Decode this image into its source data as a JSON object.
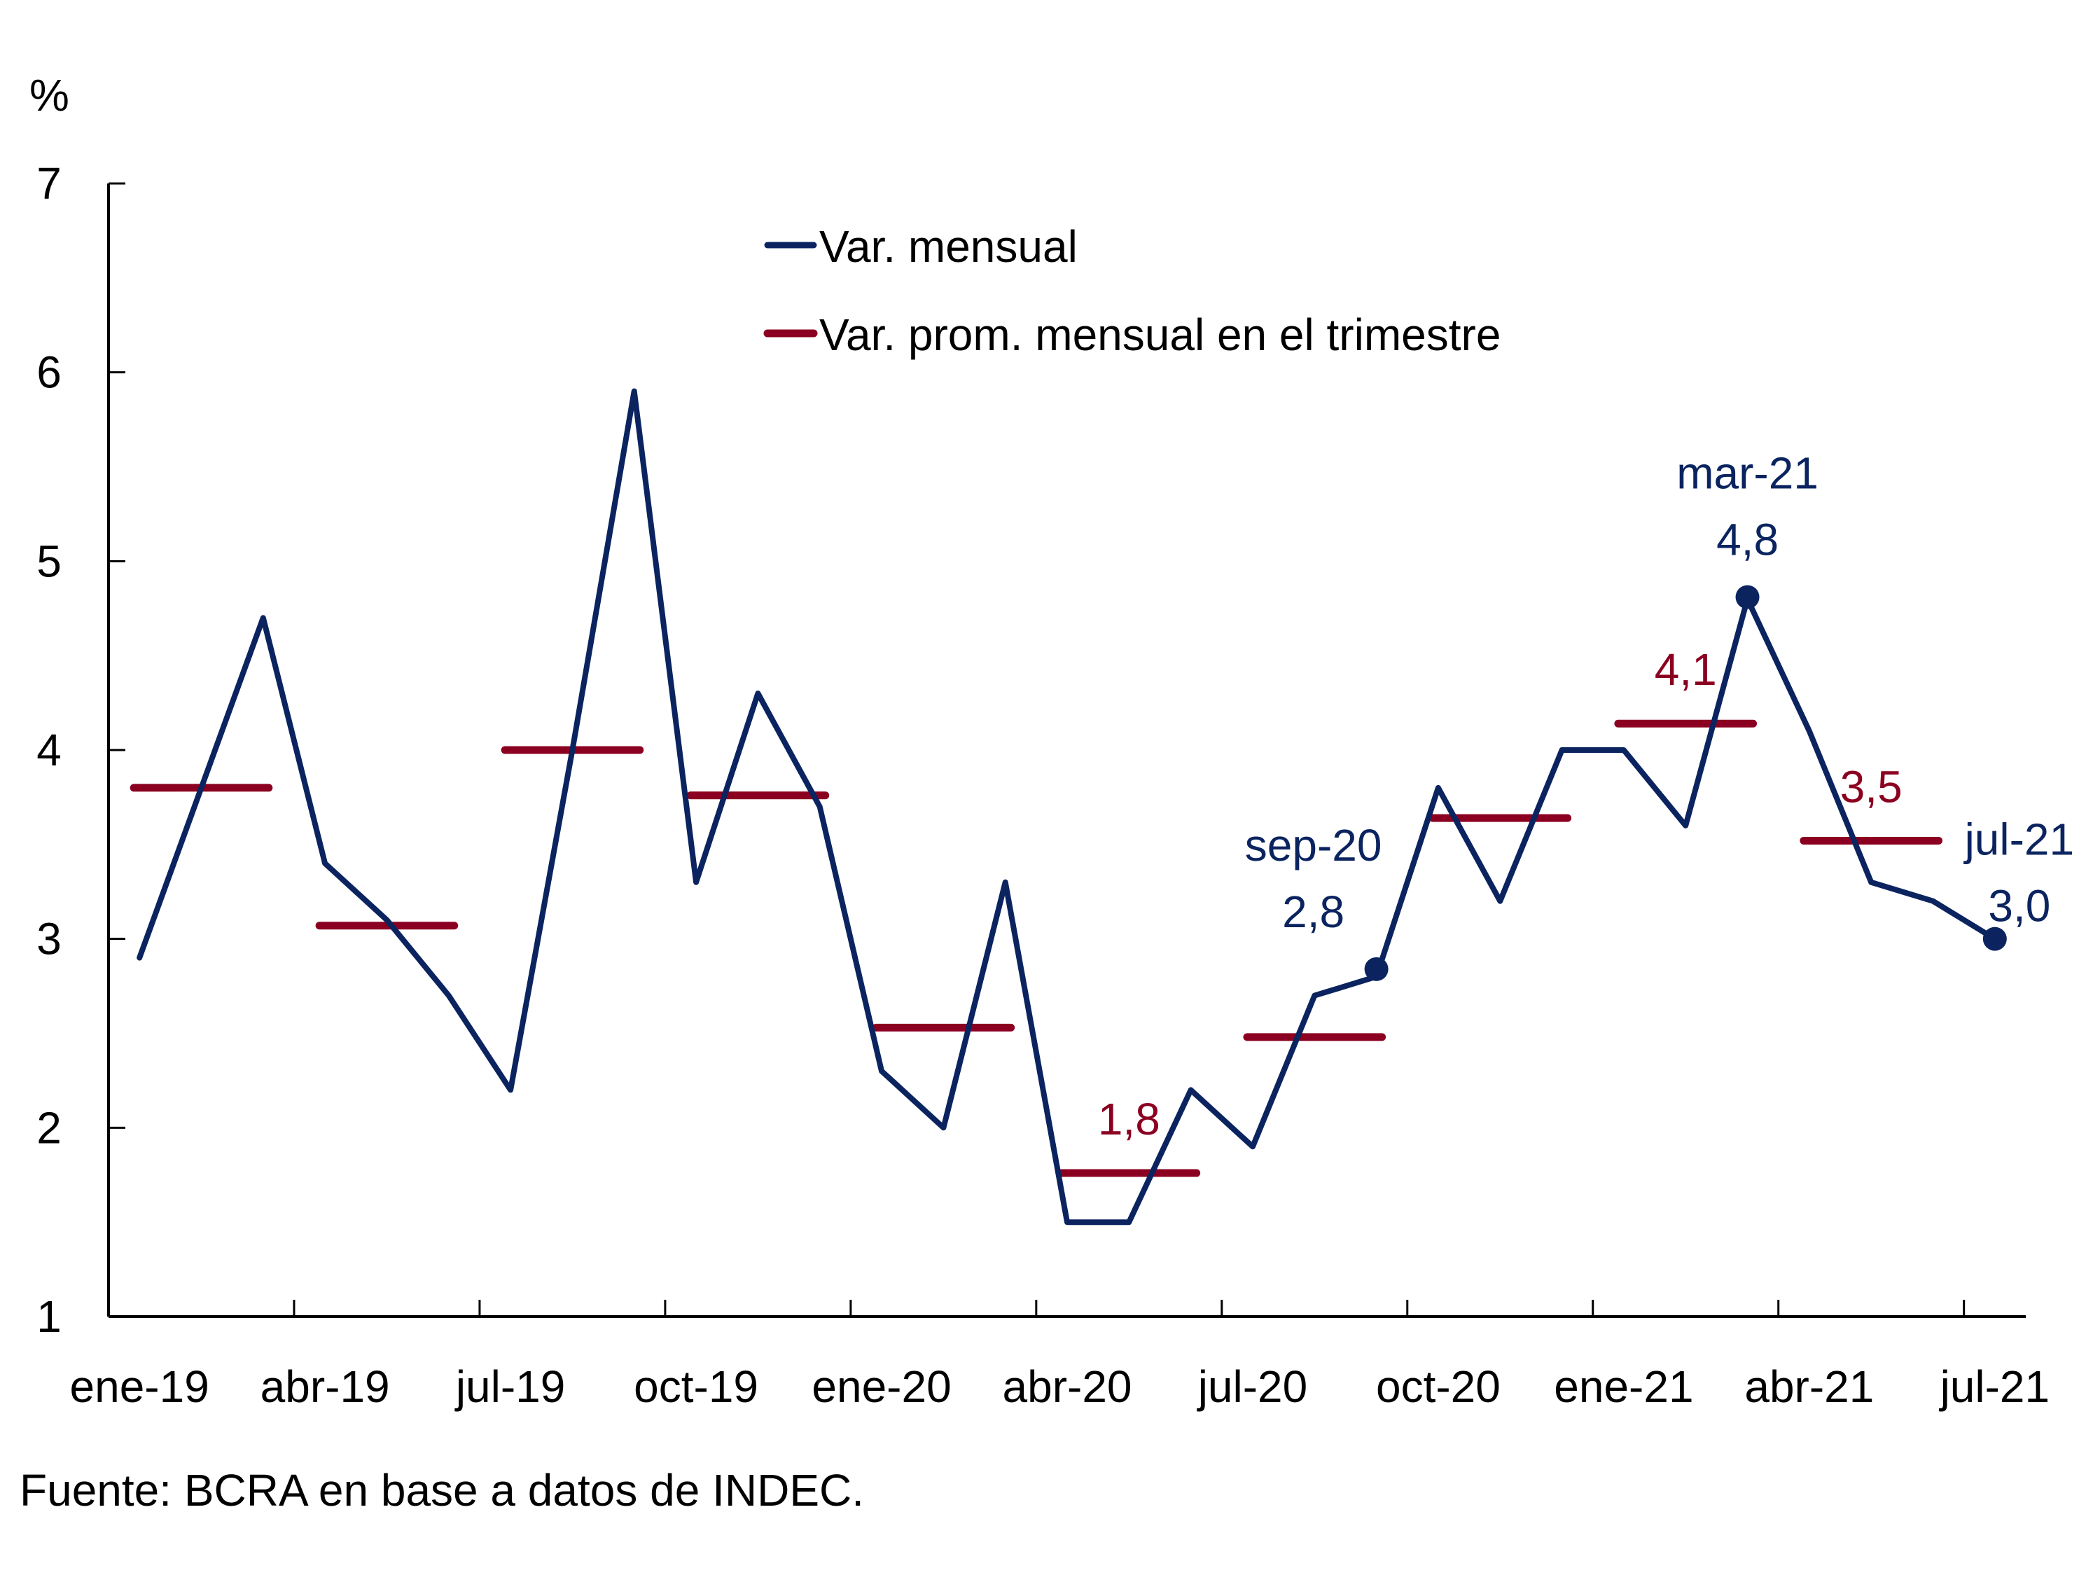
{
  "chart_data": {
    "type": "line",
    "title": "",
    "ylabel": "%",
    "xlabel": "",
    "ylim": [
      1,
      7
    ],
    "yticks": [
      1,
      2,
      3,
      4,
      5,
      6,
      7
    ],
    "grid": false,
    "legend_position": "top-center",
    "months": [
      "ene-19",
      "feb-19",
      "mar-19",
      "abr-19",
      "may-19",
      "jun-19",
      "jul-19",
      "ago-19",
      "sep-19",
      "oct-19",
      "nov-19",
      "dic-19",
      "ene-20",
      "feb-20",
      "mar-20",
      "abr-20",
      "may-20",
      "jun-20",
      "jul-20",
      "ago-20",
      "sep-20",
      "oct-20",
      "nov-20",
      "dic-20",
      "ene-21",
      "feb-21",
      "mar-21",
      "abr-21",
      "may-21",
      "jun-21",
      "jul-21"
    ],
    "x_tick_labels": [
      "ene-19",
      "abr-19",
      "jul-19",
      "oct-19",
      "ene-20",
      "abr-20",
      "jul-20",
      "oct-20",
      "ene-21",
      "abr-21",
      "jul-21"
    ],
    "series": [
      {
        "name": "Var. mensual",
        "color": "#0b2460",
        "values": [
          2.9,
          3.8,
          4.7,
          3.4,
          3.1,
          2.7,
          2.2,
          4.0,
          5.9,
          3.3,
          4.3,
          3.7,
          2.3,
          2.0,
          3.3,
          1.5,
          1.5,
          2.2,
          1.9,
          2.7,
          2.8,
          3.8,
          3.2,
          4.0,
          4.0,
          3.6,
          4.8,
          4.1,
          3.3,
          3.2,
          3.0
        ]
      },
      {
        "name": "Var. prom. mensual en el trimestre",
        "color": "#8b0020",
        "quarters": [
          {
            "start": "ene-19",
            "end": "mar-19",
            "value": 3.8
          },
          {
            "start": "abr-19",
            "end": "jun-19",
            "value": 3.07
          },
          {
            "start": "jul-19",
            "end": "sep-19",
            "value": 4.0
          },
          {
            "start": "oct-19",
            "end": "dic-19",
            "value": 3.76
          },
          {
            "start": "ene-20",
            "end": "mar-20",
            "value": 2.53
          },
          {
            "start": "abr-20",
            "end": "jun-20",
            "value": 1.76
          },
          {
            "start": "jul-20",
            "end": "sep-20",
            "value": 2.48
          },
          {
            "start": "oct-20",
            "end": "dic-20",
            "value": 3.64
          },
          {
            "start": "ene-21",
            "end": "mar-21",
            "value": 4.14
          },
          {
            "start": "abr-21",
            "end": "jun-21",
            "value": 3.52
          }
        ]
      }
    ],
    "point_annotations": [
      {
        "month": "sep-20",
        "label": "sep-20",
        "value_label": "2,8",
        "value": 2.84
      },
      {
        "month": "mar-21",
        "label": "mar-21",
        "value_label": "4,8",
        "value": 4.81
      },
      {
        "month": "jul-21",
        "label": "jul-21",
        "value_label": "3,0",
        "value": 3.0
      }
    ],
    "quarter_annotations": [
      {
        "quarter_index": 5,
        "label": "1,8"
      },
      {
        "quarter_index": 8,
        "label": "4,1"
      },
      {
        "quarter_index": 9,
        "label": "3,5"
      }
    ]
  },
  "legend": {
    "items": [
      {
        "label": "Var. mensual",
        "color": "#0b2460"
      },
      {
        "label": "Var. prom. mensual en el trimestre",
        "color": "#8b0020"
      }
    ]
  },
  "y_unit": "%",
  "footer": "Fuente: BCRA en base a datos de INDEC."
}
